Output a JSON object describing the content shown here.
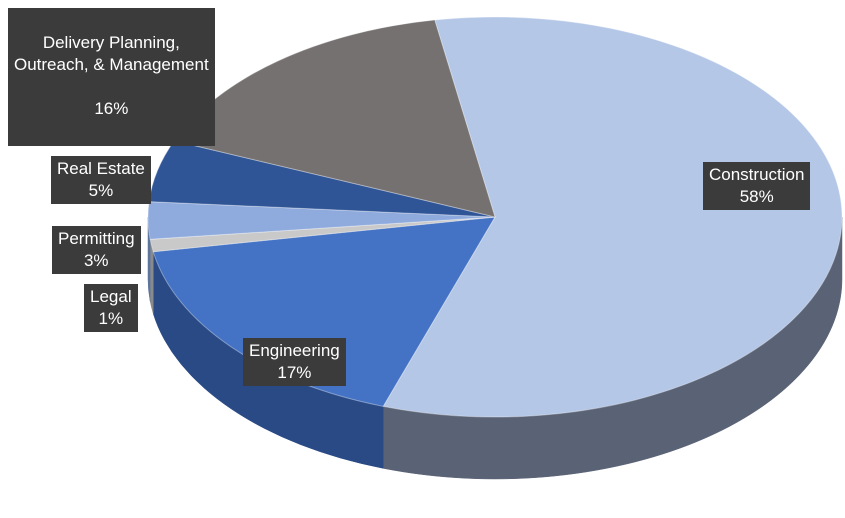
{
  "chart_data": {
    "type": "pie",
    "style": "3d",
    "title": "",
    "slices": [
      {
        "label": "Construction",
        "pct_label": "58%",
        "value": 58,
        "color": "#b4c7e7",
        "side_color": "#5a6275"
      },
      {
        "label": "Engineering",
        "pct_label": "17%",
        "value": 17,
        "color": "#4472c4",
        "side_color": "#2a4a86"
      },
      {
        "label": "Legal",
        "pct_label": "1%",
        "value": 1,
        "color": "#c9c9c9",
        "side_color": "#8a8a8a"
      },
      {
        "label": "Permitting",
        "pct_label": "3%",
        "value": 3,
        "color": "#8faadc",
        "side_color": "#5c759e"
      },
      {
        "label": "Real Estate",
        "pct_label": "5%",
        "value": 5,
        "color": "#2f5597",
        "side_color": "#1f3864"
      },
      {
        "label": "Delivery Planning,\nOutreach, & Management",
        "pct_label": "16%",
        "value": 16,
        "color": "#767171",
        "side_color": "#4a4646"
      }
    ],
    "legend": "none",
    "data_labels": "callout-boxes"
  }
}
